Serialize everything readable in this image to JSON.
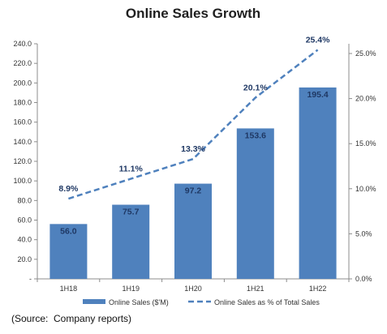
{
  "chart_data": {
    "type": "bar",
    "title": "Online Sales Growth",
    "categories": [
      "1H18",
      "1H19",
      "1H20",
      "1H21",
      "1H22"
    ],
    "series": [
      {
        "name": "Online Sales ($'M)",
        "kind": "bar",
        "axis": "left",
        "color": "#4f81bd",
        "values": [
          56.0,
          75.7,
          97.2,
          153.6,
          195.4
        ],
        "labels": [
          "56.0",
          "75.7",
          "97.2",
          "153.6",
          "195.4"
        ]
      },
      {
        "name": "Online Sales as % of Total Sales",
        "kind": "line",
        "line_style": "dashed",
        "axis": "right",
        "color": "#4f81bd",
        "values": [
          8.9,
          11.1,
          13.3,
          20.1,
          25.4
        ],
        "labels": [
          "8.9%",
          "11.1%",
          "13.3%",
          "20.1%",
          "25.4%"
        ]
      }
    ],
    "ylim": [
      0,
      240
    ],
    "yticks": [
      "-",
      "20.0",
      "40.0",
      "60.0",
      "80.0",
      "100.0",
      "120.0",
      "140.0",
      "160.0",
      "180.0",
      "200.0",
      "220.0",
      "240.0"
    ],
    "y2lim": [
      0,
      25
    ],
    "y2ticks": [
      "0.0%",
      "5.0%",
      "10.0%",
      "15.0%",
      "20.0%",
      "25.0%"
    ],
    "grid": false,
    "legend_position": "bottom"
  },
  "source_note": "(Source:  Company reports)"
}
